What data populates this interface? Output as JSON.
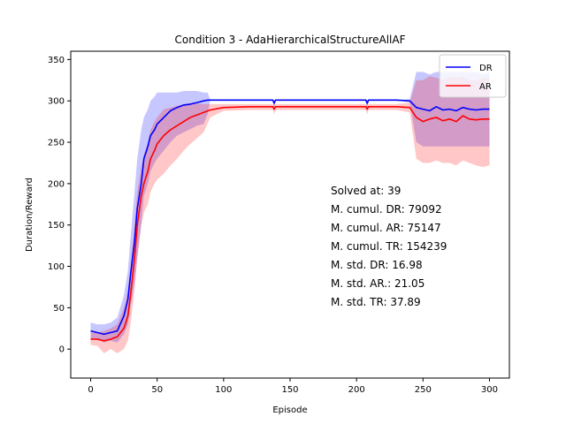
{
  "chart_data": {
    "type": "line",
    "title": "Condition 3 - AdaHierarchicalStructureAllAF",
    "xlabel": "Episode",
    "ylabel": "Duration/Reward",
    "xlim": [
      -15,
      315
    ],
    "ylim": [
      -35,
      360
    ],
    "xticks": [
      0,
      50,
      100,
      150,
      200,
      250,
      300
    ],
    "yticks": [
      0,
      50,
      100,
      150,
      200,
      250,
      300,
      350
    ],
    "grid": false,
    "legend": "top-right",
    "series": [
      {
        "name": "DR",
        "color": "#0000ff",
        "band_color": "#0000ff",
        "x": [
          0,
          5,
          10,
          15,
          20,
          25,
          28,
          30,
          33,
          35,
          38,
          40,
          43,
          45,
          48,
          50,
          55,
          60,
          65,
          70,
          75,
          80,
          85,
          88,
          90,
          100,
          137,
          138,
          139,
          150,
          200,
          207,
          208,
          209,
          230,
          240,
          245,
          250,
          255,
          260,
          265,
          270,
          275,
          280,
          285,
          290,
          295,
          300
        ],
        "values": [
          22,
          20,
          18,
          20,
          22,
          40,
          60,
          90,
          130,
          170,
          200,
          230,
          245,
          258,
          265,
          272,
          280,
          288,
          292,
          295,
          296,
          298,
          300,
          301,
          301,
          301,
          301,
          297,
          301,
          301,
          301,
          301,
          297,
          301,
          301,
          300,
          292,
          290,
          288,
          293,
          289,
          290,
          288,
          292,
          290,
          289,
          290,
          290
        ],
        "band_low": [
          12,
          12,
          8,
          10,
          8,
          18,
          30,
          50,
          80,
          110,
          150,
          185,
          200,
          215,
          225,
          230,
          240,
          250,
          258,
          262,
          266,
          270,
          272,
          284,
          301,
          301,
          301,
          290,
          301,
          301,
          301,
          301,
          290,
          301,
          301,
          298,
          250,
          245,
          245,
          245,
          245,
          245,
          245,
          245,
          245,
          245,
          245,
          245
        ],
        "band_high": [
          32,
          30,
          30,
          32,
          38,
          65,
          95,
          135,
          190,
          230,
          265,
          280,
          290,
          300,
          305,
          310,
          310,
          310,
          310,
          312,
          312,
          312,
          310,
          310,
          301,
          301,
          301,
          301,
          301,
          301,
          301,
          301,
          301,
          301,
          301,
          302,
          335,
          335,
          332,
          335,
          335,
          335,
          335,
          335,
          335,
          335,
          332,
          335
        ]
      },
      {
        "name": "AR",
        "color": "#ff0000",
        "band_color": "#ff0000",
        "x": [
          0,
          5,
          10,
          15,
          20,
          25,
          28,
          30,
          33,
          35,
          38,
          40,
          43,
          45,
          48,
          50,
          55,
          60,
          65,
          70,
          75,
          80,
          85,
          90,
          100,
          120,
          137,
          138,
          139,
          150,
          200,
          207,
          208,
          209,
          230,
          240,
          245,
          250,
          255,
          260,
          265,
          270,
          275,
          280,
          285,
          290,
          295,
          300
        ],
        "values": [
          12,
          12,
          10,
          12,
          15,
          25,
          40,
          65,
          110,
          150,
          185,
          200,
          215,
          230,
          240,
          248,
          258,
          265,
          270,
          275,
          280,
          283,
          286,
          289,
          292,
          293,
          293,
          290,
          293,
          293,
          293,
          293,
          290,
          293,
          293,
          292,
          280,
          275,
          278,
          280,
          276,
          278,
          275,
          282,
          278,
          277,
          278,
          278
        ],
        "band_low": [
          5,
          4,
          -5,
          0,
          -5,
          0,
          10,
          30,
          70,
          110,
          150,
          165,
          175,
          190,
          200,
          205,
          212,
          222,
          230,
          240,
          248,
          255,
          262,
          280,
          288,
          289,
          289,
          284,
          289,
          289,
          289,
          289,
          284,
          289,
          289,
          286,
          230,
          225,
          225,
          228,
          225,
          225,
          222,
          228,
          225,
          222,
          220,
          222
        ],
        "band_high": [
          20,
          20,
          22,
          25,
          30,
          50,
          70,
          100,
          150,
          190,
          220,
          235,
          250,
          265,
          275,
          280,
          290,
          292,
          294,
          296,
          297,
          297,
          296,
          296,
          296,
          296,
          296,
          296,
          296,
          296,
          296,
          296,
          296,
          296,
          296,
          298,
          325,
          325,
          330,
          328,
          325,
          330,
          328,
          330,
          325,
          325,
          328,
          328
        ]
      }
    ],
    "annotations": [
      "Solved at: 39",
      "M. cumul. DR: 79092",
      "M. cumul. AR: 75147",
      "M. cumul. TR: 154239",
      "M. std. DR: 16.98",
      "M. std. AR.: 21.05",
      "M. std. TR: 37.89"
    ]
  }
}
